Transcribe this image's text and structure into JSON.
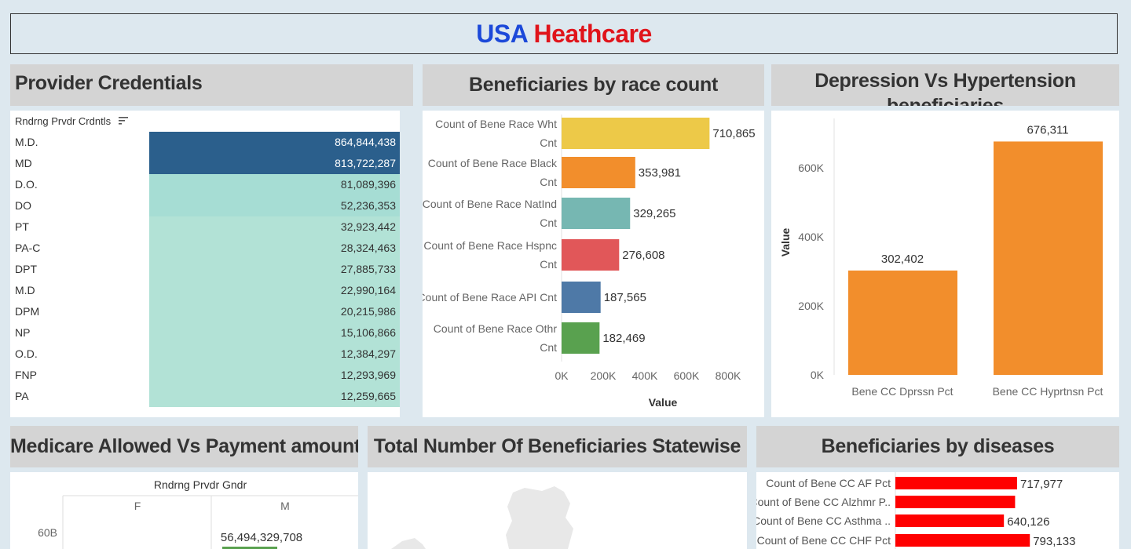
{
  "title": {
    "part1": "USA",
    "part2": "Heathcare"
  },
  "colors": {
    "dark_blue": "#2b5f8c",
    "mint": "#b2e2d6",
    "orange": "#f28e2c",
    "red": "#ff0000"
  },
  "provider_credentials": {
    "title": "Provider Credentials",
    "column_header": "Rndrng Prvdr Crdntls",
    "sort_icon": "sort-icon",
    "rows": [
      {
        "label": "M.D.",
        "value": "864,844,438"
      },
      {
        "label": "MD",
        "value": "813,722,287"
      },
      {
        "label": "D.O.",
        "value": "81,089,396"
      },
      {
        "label": "DO",
        "value": "52,236,353"
      },
      {
        "label": "PT",
        "value": "32,923,442"
      },
      {
        "label": "PA-C",
        "value": "28,324,463"
      },
      {
        "label": "DPT",
        "value": "27,885,733"
      },
      {
        "label": "M.D",
        "value": "22,990,164"
      },
      {
        "label": "DPM",
        "value": "20,215,986"
      },
      {
        "label": "NP",
        "value": "15,106,866"
      },
      {
        "label": "O.D.",
        "value": "12,384,297"
      },
      {
        "label": "FNP",
        "value": "12,293,969"
      },
      {
        "label": "PA",
        "value": "12,259,665"
      }
    ]
  },
  "race": {
    "title": "Beneficiaries by race count"
  },
  "depression": {
    "title": "Depression Vs Hypertension beneficiaries"
  },
  "medicare": {
    "title": "Medicare Allowed Vs Payment amount"
  },
  "statewise": {
    "title": "Total Number Of Beneficiaries Statewise"
  },
  "diseases": {
    "title": "Beneficiaries by  diseases"
  },
  "chart_data": [
    {
      "type": "bar",
      "orientation": "horizontal",
      "title": "Beneficiaries by race count",
      "categories": [
        "Count of Bene Race Wht Cnt",
        "Count of Bene Race Black Cnt",
        "Count of Bene Race NatInd Cnt",
        "Count of Bene Race Hspnc Cnt",
        "Count of Bene Race API Cnt",
        "Count of Bene Race Othr Cnt"
      ],
      "values": [
        710865,
        353981,
        329265,
        276608,
        187565,
        182469
      ],
      "value_labels": [
        "710,865",
        "353,981",
        "329,265",
        "276,608",
        "187,565",
        "182,469"
      ],
      "colors": [
        "#edc948",
        "#f28e2c",
        "#76b7b2",
        "#e15759",
        "#4e79a7",
        "#59a14f"
      ],
      "xlabel": "Value",
      "xlim": [
        0,
        900000
      ],
      "ticks": [
        0,
        200000,
        400000,
        600000,
        800000
      ],
      "tick_labels": [
        "0K",
        "200K",
        "400K",
        "600K",
        "800K"
      ]
    },
    {
      "type": "bar",
      "title": "Depression Vs Hypertension beneficiaries",
      "categories": [
        "Bene CC Dprssn Pct",
        "Bene CC Hyprtnsn Pct"
      ],
      "values": [
        302402,
        676311
      ],
      "value_labels": [
        "302,402",
        "676,311"
      ],
      "ylabel": "Value",
      "ylim": [
        0,
        760000
      ],
      "ticks": [
        0,
        200000,
        400000,
        600000
      ],
      "tick_labels": [
        "0K",
        "200K",
        "400K",
        "600K"
      ],
      "color": "#f28e2c"
    },
    {
      "type": "bar",
      "title": "Medicare Allowed Vs Payment amount",
      "header": "Rndrng Prvdr Gndr",
      "columns": [
        "F",
        "M"
      ],
      "visible_tick_label": "60B",
      "value_labels": [
        "56,494,329,708"
      ],
      "values": [
        56494329708
      ]
    },
    {
      "type": "bar",
      "orientation": "horizontal",
      "title": "Beneficiaries by  diseases",
      "categories": [
        "Count of Bene CC AF Pct",
        "Count of Bene CC Alzhmr P..",
        "Count of Bene CC Asthma ..",
        "Count of Bene CC CHF Pct"
      ],
      "values": [
        717977,
        706000,
        640126,
        793133
      ],
      "value_labels": [
        "717,977",
        "",
        "640,126",
        "793,133"
      ],
      "color": "#ff0000"
    }
  ]
}
